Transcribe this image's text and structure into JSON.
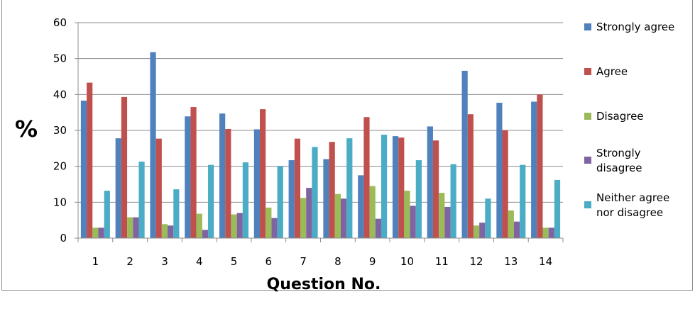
{
  "chart_data": {
    "type": "bar",
    "ylabel": "%",
    "xlabel": "Question No.",
    "ylim": [
      0,
      60
    ],
    "yticks": [
      0,
      10,
      20,
      30,
      40,
      50,
      60
    ],
    "grid": true,
    "legend_position": "right",
    "categories": [
      "1",
      "2",
      "3",
      "4",
      "5",
      "6",
      "7",
      "8",
      "9",
      "10",
      "11",
      "12",
      "13",
      "14"
    ],
    "series": [
      {
        "name": "Strongly agree",
        "legend_lines": [
          "Strongly agree"
        ],
        "color": "#4F81BD",
        "values": [
          38.3,
          27.8,
          51.8,
          33.9,
          34.7,
          30.3,
          21.7,
          22.0,
          17.5,
          28.4,
          31.1,
          46.6,
          37.7,
          38.0
        ]
      },
      {
        "name": "Agree",
        "legend_lines": [
          "Agree"
        ],
        "color": "#C0504D",
        "values": [
          43.3,
          39.3,
          27.7,
          36.5,
          30.4,
          35.9,
          27.7,
          26.8,
          33.7,
          28.0,
          27.2,
          34.5,
          30.1,
          40.0
        ]
      },
      {
        "name": "Disagree",
        "legend_lines": [
          "Disagree"
        ],
        "color": "#9BBB59",
        "values": [
          2.9,
          5.8,
          3.9,
          6.8,
          6.6,
          8.5,
          11.2,
          12.3,
          14.5,
          13.2,
          12.6,
          3.5,
          7.7,
          2.9
        ]
      },
      {
        "name": "Strongly disagree",
        "legend_lines": [
          "Strongly",
          "disagree"
        ],
        "color": "#8064A2",
        "values": [
          2.9,
          5.8,
          3.5,
          2.3,
          7.0,
          5.6,
          14.0,
          11.0,
          5.4,
          9.0,
          8.7,
          4.3,
          4.6,
          2.9
        ]
      },
      {
        "name": "Neither agree nor disagree",
        "legend_lines": [
          "Neither agree",
          "nor disagree"
        ],
        "color": "#4BACC6",
        "values": [
          13.2,
          21.3,
          13.6,
          20.4,
          21.1,
          20.1,
          25.4,
          27.8,
          28.8,
          21.7,
          20.6,
          11.0,
          20.4,
          16.2
        ]
      }
    ]
  }
}
